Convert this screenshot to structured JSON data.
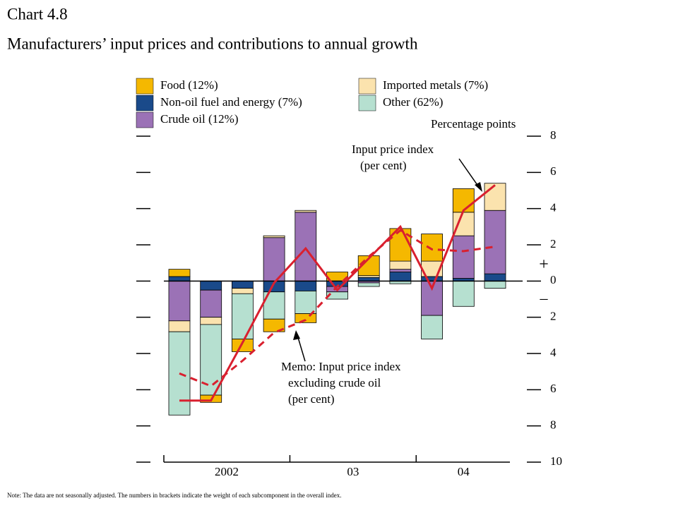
{
  "chart_data": {
    "type": "bar",
    "title": "Chart 4.8",
    "subtitle": "Manufacturers’ input prices and contributions to annual growth",
    "note": "Note:  The data are not seasonally adjusted.  The numbers in brackets indicate the weight of each subcomponent in the overall index.",
    "y_axis_label": "Percentage points",
    "stacked": true,
    "categories": [
      null,
      null,
      null,
      null,
      null,
      null,
      null,
      null,
      null,
      null,
      null
    ],
    "x_groups": [
      {
        "label": "2002",
        "count": 4
      },
      {
        "label": "03",
        "count": 4
      },
      {
        "label": "04",
        "count": 3
      }
    ],
    "series": [
      {
        "name": "Food (12%)",
        "color": "#f5b800",
        "values": [
          0.4,
          -0.4,
          -0.7,
          -0.7,
          -0.5,
          0.5,
          1.1,
          1.8,
          1.5,
          1.3,
          0
        ]
      },
      {
        "name": "Non-oil fuel and energy (7%)",
        "color": "#1a4a8a",
        "values": [
          0.25,
          -0.5,
          -0.4,
          -0.6,
          -0.55,
          -0.3,
          0.2,
          0.5,
          0.25,
          0.15,
          0.4
        ]
      },
      {
        "name": "Crude oil (12%)",
        "color": "#9b72b6",
        "values": [
          -2.2,
          -1.5,
          0,
          2.4,
          3.8,
          -0.3,
          -0.1,
          0.15,
          -1.9,
          2.35,
          3.5
        ]
      },
      {
        "name": "Imported metals (7%)",
        "color": "#fbe3ae",
        "values": [
          -0.6,
          -0.4,
          -0.3,
          0.1,
          0.1,
          0,
          0.1,
          0.45,
          0.85,
          1.3,
          1.5
        ]
      },
      {
        "name": "Other (62%)",
        "color": "#b6e0d0",
        "values": [
          -4.6,
          -3.9,
          -2.5,
          -1.5,
          -1.25,
          -0.4,
          -0.2,
          -0.15,
          -1.3,
          -1.4,
          -0.4
        ]
      }
    ],
    "lines": [
      {
        "label": [
          "Input price index",
          "(per cent)"
        ],
        "style": "solid",
        "color": "#d9202f",
        "values": [
          -6.6,
          -6.6,
          -3.4,
          -0.1,
          1.8,
          -0.5,
          1.25,
          3.0,
          -0.4,
          3.9,
          5.3
        ]
      },
      {
        "label": [
          "Memo:  Input price index",
          "excluding crude oil",
          "(per cent)"
        ],
        "style": "dashed",
        "color": "#d9202f",
        "values": [
          -5.1,
          -5.8,
          -4.4,
          -2.85,
          -2.15,
          -0.3,
          1.35,
          2.8,
          1.75,
          1.65,
          1.9
        ]
      }
    ],
    "signs": [
      "+",
      "–"
    ],
    "ylim": [
      -10,
      8
    ],
    "yticks": [
      {
        "value": -10,
        "label": "10"
      },
      {
        "value": -8,
        "label": "8"
      },
      {
        "value": -6,
        "label": "6"
      },
      {
        "value": -4,
        "label": "4"
      },
      {
        "value": -2,
        "label": "2"
      },
      0,
      2,
      4,
      6,
      8
    ]
  }
}
